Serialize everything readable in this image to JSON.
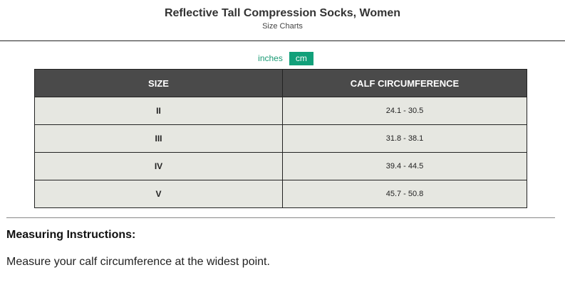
{
  "header": {
    "title": "Reflective Tall Compression Socks, Women",
    "subtitle": "Size Charts"
  },
  "units": {
    "inches": "inches",
    "cm": "cm",
    "selected": "cm",
    "accent": "#12a07a"
  },
  "table": {
    "headers": [
      "SIZE",
      "CALF CIRCUMFERENCE"
    ],
    "rows": [
      [
        "II",
        "24.1 - 30.5"
      ],
      [
        "III",
        "31.8 - 38.1"
      ],
      [
        "IV",
        "39.4 - 44.5"
      ],
      [
        "V",
        "45.7 - 50.8"
      ]
    ]
  },
  "instructions": {
    "heading": "Measuring Instructions:",
    "text": "Measure your calf circumference at the widest point."
  }
}
